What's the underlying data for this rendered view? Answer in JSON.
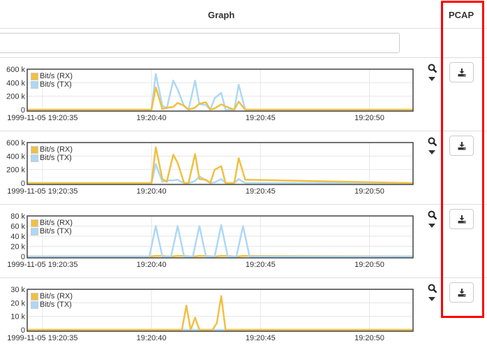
{
  "header": {
    "graph": "Graph",
    "pcap": "PCAP"
  },
  "filter": {
    "value": "",
    "placeholder": ""
  },
  "colors": {
    "rx": "#f0c040",
    "tx": "#add8f5",
    "highlight": "#ff0000"
  },
  "icons": {
    "zoom": "search-icon",
    "menu": "caret-down-icon",
    "download": "download-icon"
  },
  "chart_data": [
    {
      "type": "line",
      "legend": [
        "Bit/s (RX)",
        "Bit/s (TX)"
      ],
      "legend_position": "top-left",
      "grid": true,
      "yticks": [
        "600 k",
        "400 k",
        "200 k",
        "0"
      ],
      "ylim": [
        0,
        600000
      ],
      "xticks": [
        "1999-11-05 19:20:35",
        "19:20:40",
        "19:20:45",
        "19:20:50"
      ],
      "xlim": [
        "19:20:34.3",
        "19:20:52.0"
      ],
      "times": [
        "19:20:34.3",
        "19:20:40.0",
        "19:20:40.2",
        "19:20:40.5",
        "19:20:40.7",
        "19:20:41.0",
        "19:20:41.2",
        "19:20:41.5",
        "19:20:41.7",
        "19:20:42.0",
        "19:20:42.2",
        "19:20:42.5",
        "19:20:42.7",
        "19:20:42.9",
        "19:20:43.2",
        "19:20:43.4",
        "19:20:43.8",
        "19:20:44.0",
        "19:20:44.3",
        "19:20:52.0"
      ],
      "series": [
        {
          "name": "Bit/s (TX)",
          "values": [
            0,
            0,
            530000,
            60000,
            20000,
            430000,
            300000,
            50000,
            0,
            430000,
            80000,
            70000,
            0,
            170000,
            250000,
            0,
            0,
            370000,
            0,
            0
          ]
        },
        {
          "name": "Bit/s (RX)",
          "values": [
            0,
            0,
            330000,
            10000,
            30000,
            40000,
            100000,
            60000,
            0,
            30000,
            90000,
            110000,
            0,
            20000,
            80000,
            50000,
            0,
            120000,
            0,
            0
          ]
        }
      ]
    },
    {
      "type": "line",
      "legend": [
        "Bit/s (RX)",
        "Bit/s (TX)"
      ],
      "legend_position": "top-left",
      "grid": true,
      "yticks": [
        "600 k",
        "400 k",
        "200 k",
        "0"
      ],
      "ylim": [
        0,
        600000
      ],
      "xticks": [
        "1999-11-05 19:20:35",
        "19:20:40",
        "19:20:45",
        "19:20:50"
      ],
      "xlim": [
        "19:20:34.3",
        "19:20:52.0"
      ],
      "times": [
        "19:20:34.3",
        "19:20:40.0",
        "19:20:40.2",
        "19:20:40.5",
        "19:20:40.7",
        "19:20:41.0",
        "19:20:41.2",
        "19:20:41.5",
        "19:20:41.7",
        "19:20:42.0",
        "19:20:42.2",
        "19:20:42.5",
        "19:20:42.7",
        "19:20:42.9",
        "19:20:43.2",
        "19:20:43.4",
        "19:20:43.8",
        "19:20:44.0",
        "19:20:44.3",
        "19:20:52.0"
      ],
      "series": [
        {
          "name": "Bit/s (TX)",
          "values": [
            0,
            0,
            280000,
            20000,
            40000,
            40000,
            50000,
            0,
            0,
            30000,
            100000,
            40000,
            0,
            10000,
            60000,
            0,
            0,
            60000,
            0,
            0
          ]
        },
        {
          "name": "Bit/s (RX)",
          "values": [
            0,
            0,
            530000,
            60000,
            20000,
            420000,
            300000,
            0,
            0,
            430000,
            60000,
            50000,
            0,
            200000,
            250000,
            0,
            0,
            370000,
            50000,
            0
          ]
        }
      ]
    },
    {
      "type": "line",
      "legend": [
        "Bit/s (RX)",
        "Bit/s (TX)"
      ],
      "legend_position": "top-left",
      "grid": true,
      "yticks": [
        "80 k",
        "60 k",
        "40 k",
        "20 k",
        "0"
      ],
      "ylim": [
        0,
        80000
      ],
      "xticks": [
        "1999-11-05 19:20:35",
        "19:20:40",
        "19:20:45",
        "19:20:50"
      ],
      "xlim": [
        "19:20:34.3",
        "19:20:52.0"
      ],
      "times": [
        "19:20:34.3",
        "19:20:39.9",
        "19:20:40.2",
        "19:20:40.5",
        "19:20:40.9",
        "19:20:41.2",
        "19:20:41.5",
        "19:20:41.9",
        "19:20:42.2",
        "19:20:42.5",
        "19:20:42.9",
        "19:20:43.2",
        "19:20:43.5",
        "19:20:43.9",
        "19:20:44.2",
        "19:20:44.5",
        "19:20:52.0"
      ],
      "series": [
        {
          "name": "Bit/s (RX)",
          "values": [
            0,
            0,
            1000,
            1000,
            0,
            1000,
            1000,
            0,
            1000,
            1000,
            0,
            1000,
            1000,
            0,
            1000,
            1000,
            0
          ]
        },
        {
          "name": "Bit/s (TX)",
          "values": [
            0,
            0,
            60000,
            0,
            0,
            60000,
            0,
            0,
            60000,
            0,
            0,
            62000,
            0,
            0,
            60000,
            0,
            0
          ]
        }
      ]
    },
    {
      "type": "line",
      "legend": [
        "Bit/s (RX)",
        "Bit/s (TX)"
      ],
      "legend_position": "top-left",
      "grid": true,
      "yticks": [
        "30 k",
        "20 k",
        "10 k",
        "0"
      ],
      "ylim": [
        0,
        30000
      ],
      "xticks": [
        "1999-11-05 19:20:35",
        "19:20:40",
        "19:20:45",
        "19:20:50"
      ],
      "xlim": [
        "19:20:34.3",
        "19:20:52.0"
      ],
      "times": [
        "19:20:34.3",
        "19:20:41.4",
        "19:20:41.6",
        "19:20:41.8",
        "19:20:42.0",
        "19:20:42.2",
        "19:20:42.8",
        "19:20:43.0",
        "19:20:43.2",
        "19:20:43.4",
        "19:20:52.0"
      ],
      "series": [
        {
          "name": "Bit/s (TX)",
          "values": [
            0,
            0,
            0,
            0,
            0,
            0,
            0,
            0,
            0,
            0,
            0
          ]
        },
        {
          "name": "Bit/s (RX)",
          "values": [
            0,
            0,
            18000,
            0,
            9000,
            0,
            0,
            5000,
            25000,
            0,
            0
          ]
        }
      ]
    }
  ]
}
